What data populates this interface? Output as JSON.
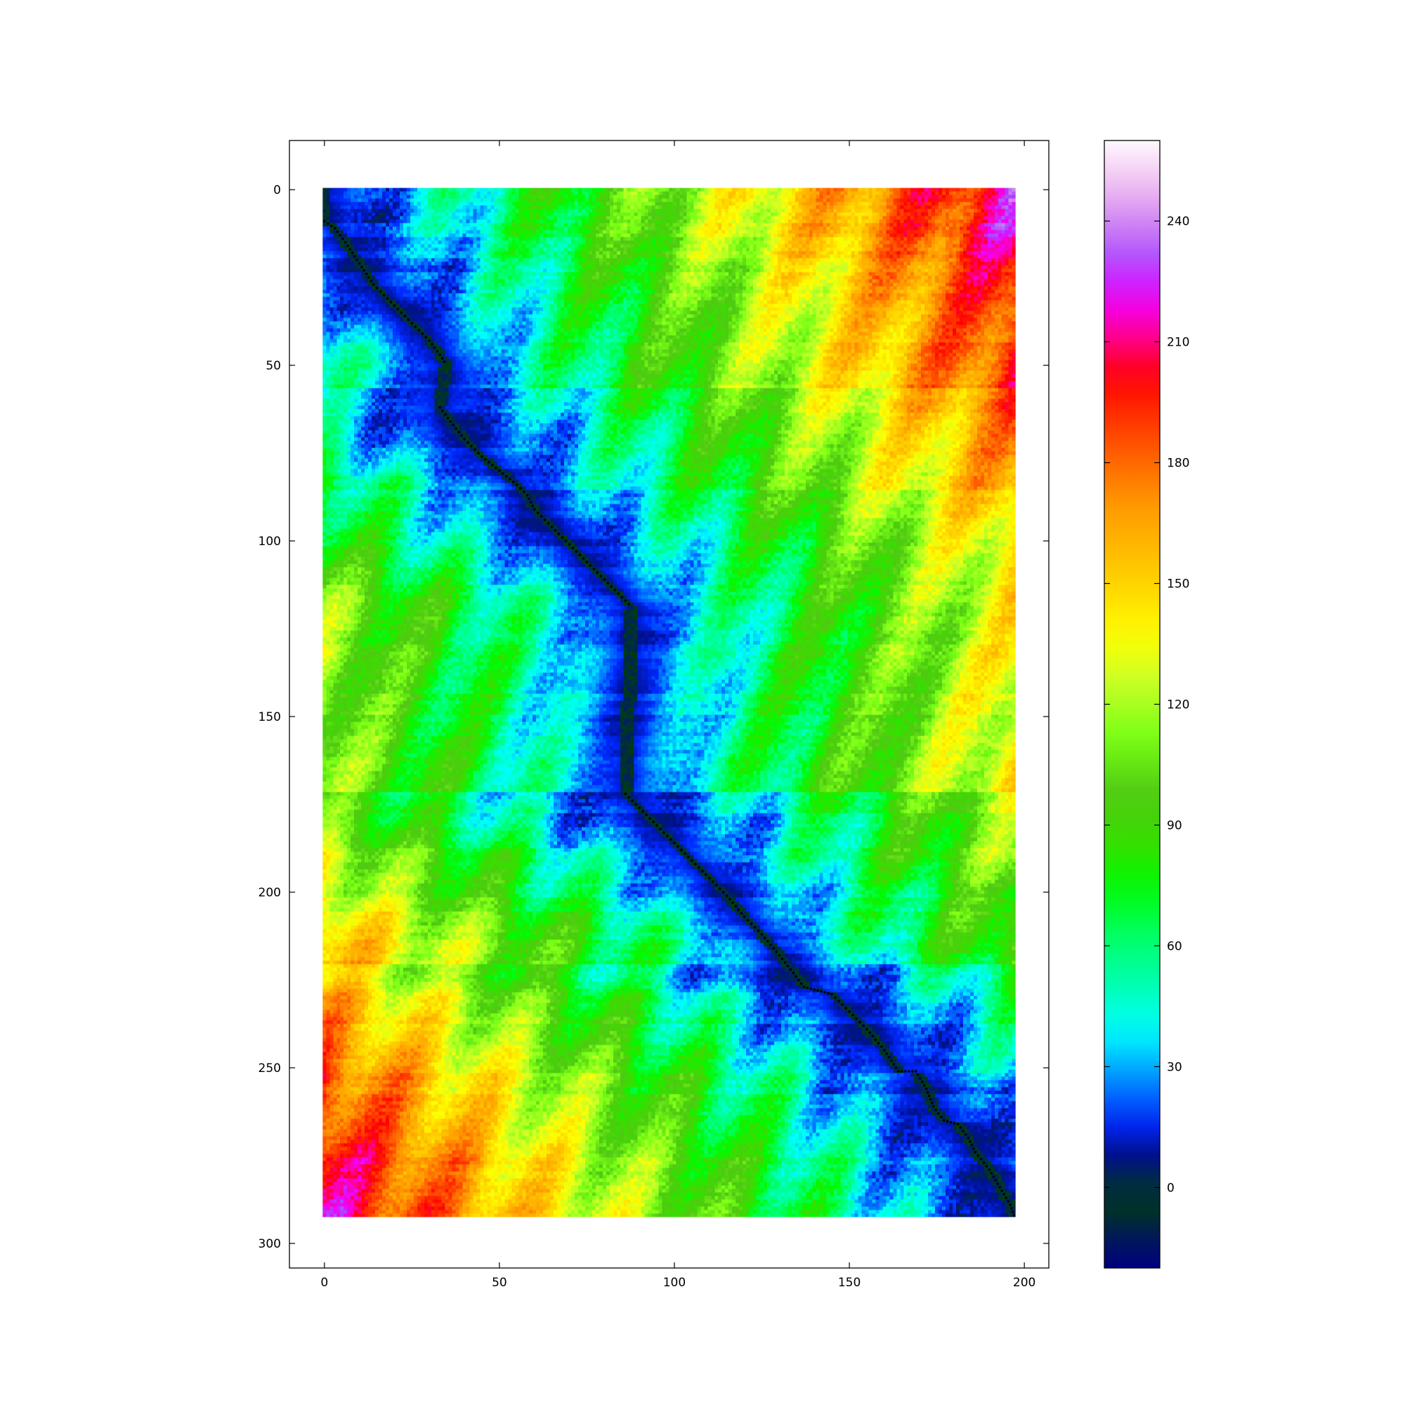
{
  "chart_data": {
    "type": "heatmap",
    "title": "",
    "xlabel": "",
    "ylabel": "",
    "grid_shape": [
      293,
      198
    ],
    "xlim": [
      -10,
      207
    ],
    "ylim": [
      307,
      -14
    ],
    "x_ticks": [
      0,
      50,
      100,
      150,
      200
    ],
    "y_ticks": [
      0,
      50,
      100,
      150,
      200,
      250,
      300
    ],
    "x_tick_labels": [
      "0",
      "50",
      "100",
      "150",
      "200"
    ],
    "y_tick_labels": [
      "0",
      "50",
      "100",
      "150",
      "200",
      "250",
      "300"
    ],
    "colorbar": {
      "range": [
        -20,
        260
      ],
      "ticks": [
        0,
        30,
        60,
        90,
        120,
        150,
        180,
        210,
        240
      ],
      "tick_labels": [
        "0",
        "30",
        "60",
        "90",
        "120",
        "150",
        "180",
        "210",
        "240"
      ],
      "colormap": "gist_ncar"
    },
    "grid": false,
    "block_boundaries": [
      0,
      30,
      44,
      57,
      80,
      113,
      172,
      188,
      206,
      221,
      293
    ],
    "warping_path": [
      [
        0,
        9
      ],
      [
        3,
        11
      ],
      [
        6,
        15
      ],
      [
        10,
        21
      ],
      [
        14,
        27
      ],
      [
        18,
        31
      ],
      [
        22,
        35
      ],
      [
        26,
        39
      ],
      [
        30,
        43
      ],
      [
        33,
        47
      ],
      [
        35,
        50
      ],
      [
        33,
        62
      ],
      [
        36,
        66
      ],
      [
        40,
        71
      ],
      [
        45,
        76
      ],
      [
        50,
        80
      ],
      [
        55,
        84
      ],
      [
        58,
        87
      ],
      [
        60,
        91
      ],
      [
        62,
        93
      ],
      [
        66,
        97
      ],
      [
        70,
        101
      ],
      [
        74,
        105
      ],
      [
        78,
        109
      ],
      [
        82,
        113
      ],
      [
        85,
        116
      ],
      [
        88,
        119
      ],
      [
        86,
        172
      ],
      [
        90,
        176
      ],
      [
        95,
        181
      ],
      [
        100,
        186
      ],
      [
        105,
        191
      ],
      [
        110,
        196
      ],
      [
        115,
        201
      ],
      [
        120,
        207
      ],
      [
        125,
        212
      ],
      [
        130,
        218
      ],
      [
        134,
        223
      ],
      [
        137,
        227
      ],
      [
        145,
        229
      ],
      [
        150,
        234
      ],
      [
        155,
        239
      ],
      [
        160,
        245
      ],
      [
        164,
        251
      ],
      [
        169,
        251
      ],
      [
        172,
        256
      ],
      [
        174,
        261
      ],
      [
        177,
        265
      ],
      [
        181,
        266
      ],
      [
        184,
        270
      ],
      [
        186,
        274
      ],
      [
        190,
        279
      ],
      [
        193,
        284
      ],
      [
        196,
        289
      ],
      [
        197,
        292
      ]
    ]
  }
}
